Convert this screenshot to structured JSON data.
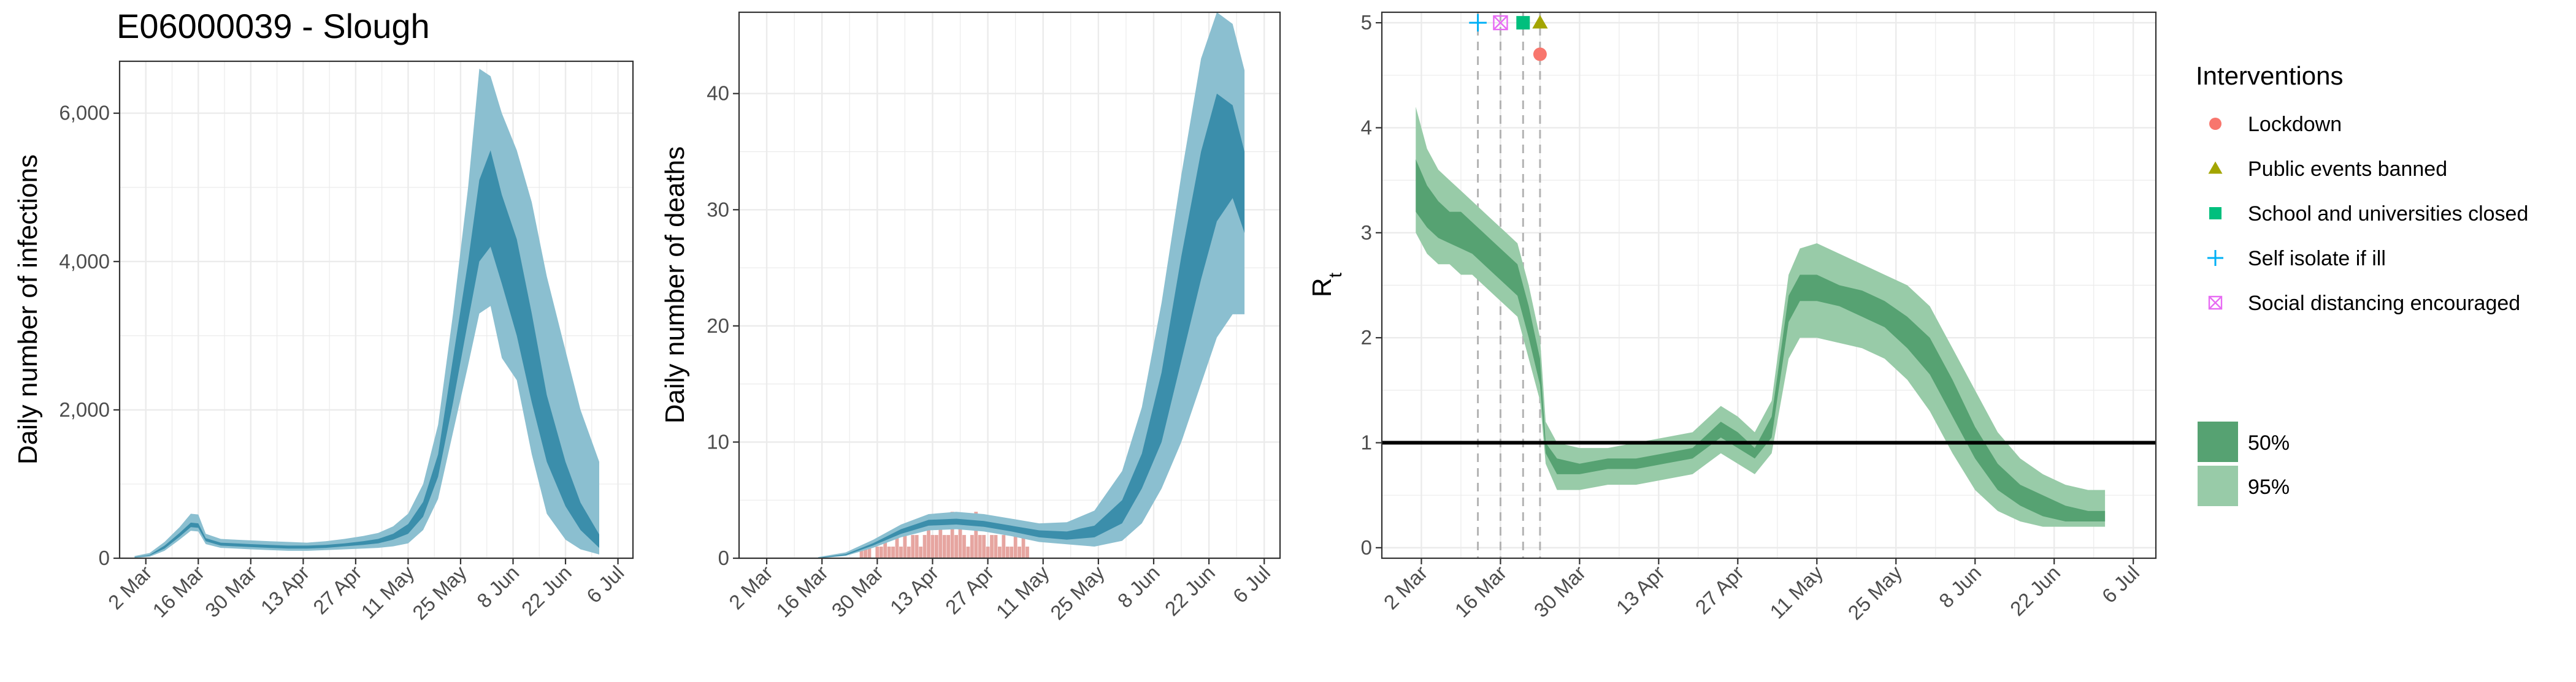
{
  "title": "E06000039 - Slough",
  "x_tick_labels": [
    "2 Mar",
    "16 Mar",
    "30 Mar",
    "13 Apr",
    "27 Apr",
    "11 May",
    "25 May",
    "8 Jun",
    "22 Jun",
    "6 Jul"
  ],
  "x_tick_dates": [
    "2020-03-02",
    "2020-03-16",
    "2020-03-30",
    "2020-04-13",
    "2020-04-27",
    "2020-05-11",
    "2020-05-25",
    "2020-06-08",
    "2020-06-22",
    "2020-07-06"
  ],
  "colors": {
    "infections_95": "#8bbfd0",
    "infections_50": "#3b8eab",
    "deaths_observed": "#e6a5a0",
    "rt_95": "#98cba8",
    "rt_50": "#56a272",
    "reference_line": "#000000",
    "intervention_line": "#b3b3b3",
    "grid": "#ebebeb",
    "panel_border": "#333333"
  },
  "chart_data": [
    {
      "id": "infections",
      "type": "area",
      "title": "E06000039 - Slough",
      "xlabel": "",
      "ylabel": "Daily number of infections",
      "xlim": [
        "2020-02-24",
        "2020-07-10"
      ],
      "ylim": [
        0,
        6700
      ],
      "y_ticks": [
        0,
        2000,
        4000,
        6000
      ],
      "y_tick_labels": [
        "0",
        "2,000",
        "4,000",
        "6,000"
      ],
      "grid": true,
      "series": [
        {
          "name": "95%",
          "x": [
            "2020-02-28",
            "2020-03-03",
            "2020-03-07",
            "2020-03-11",
            "2020-03-14",
            "2020-03-16",
            "2020-03-18",
            "2020-03-22",
            "2020-03-26",
            "2020-03-30",
            "2020-04-04",
            "2020-04-09",
            "2020-04-14",
            "2020-04-19",
            "2020-04-24",
            "2020-04-29",
            "2020-05-03",
            "2020-05-07",
            "2020-05-11",
            "2020-05-15",
            "2020-05-19",
            "2020-05-23",
            "2020-05-27",
            "2020-05-30",
            "2020-06-02",
            "2020-06-05",
            "2020-06-09",
            "2020-06-13",
            "2020-06-17",
            "2020-06-22",
            "2020-06-26",
            "2020-07-01"
          ],
          "upper": [
            30,
            70,
            220,
            420,
            600,
            590,
            330,
            260,
            250,
            240,
            230,
            220,
            210,
            230,
            260,
            300,
            340,
            430,
            600,
            1000,
            1800,
            3300,
            5000,
            6600,
            6500,
            6000,
            5500,
            4800,
            3800,
            2800,
            2000,
            1300
          ],
          "lower": [
            5,
            20,
            100,
            250,
            370,
            360,
            190,
            140,
            130,
            120,
            110,
            100,
            100,
            110,
            120,
            130,
            140,
            160,
            200,
            380,
            800,
            1700,
            2600,
            3300,
            3400,
            2700,
            2400,
            1400,
            600,
            250,
            120,
            50
          ]
        },
        {
          "name": "50%",
          "x": [
            "2020-02-28",
            "2020-03-03",
            "2020-03-07",
            "2020-03-11",
            "2020-03-14",
            "2020-03-16",
            "2020-03-18",
            "2020-03-22",
            "2020-03-26",
            "2020-03-30",
            "2020-04-04",
            "2020-04-09",
            "2020-04-14",
            "2020-04-19",
            "2020-04-24",
            "2020-04-29",
            "2020-05-03",
            "2020-05-07",
            "2020-05-11",
            "2020-05-15",
            "2020-05-19",
            "2020-05-23",
            "2020-05-27",
            "2020-05-30",
            "2020-06-02",
            "2020-06-05",
            "2020-06-09",
            "2020-06-13",
            "2020-06-17",
            "2020-06-22",
            "2020-06-26",
            "2020-07-01"
          ],
          "upper": [
            15,
            45,
            170,
            340,
            480,
            470,
            270,
            210,
            200,
            190,
            180,
            170,
            170,
            180,
            200,
            230,
            260,
            330,
            460,
            760,
            1400,
            2700,
            4000,
            5100,
            5500,
            4900,
            4300,
            3300,
            2200,
            1300,
            750,
            320
          ],
          "lower": [
            10,
            35,
            130,
            290,
            420,
            410,
            230,
            170,
            160,
            150,
            140,
            130,
            130,
            140,
            160,
            180,
            200,
            250,
            330,
            560,
            1100,
            2100,
            3200,
            4000,
            4200,
            3700,
            3000,
            2100,
            1300,
            700,
            380,
            140
          ]
        }
      ]
    },
    {
      "id": "deaths",
      "type": "area",
      "xlabel": "",
      "ylabel": "Daily number of deaths",
      "xlim": [
        "2020-02-24",
        "2020-07-10"
      ],
      "ylim": [
        0,
        47
      ],
      "y_ticks": [
        0,
        10,
        20,
        30,
        40
      ],
      "y_tick_labels": [
        "0",
        "10",
        "20",
        "30",
        "40"
      ],
      "grid": true,
      "series": [
        {
          "name": "95%",
          "x": [
            "2020-03-15",
            "2020-03-22",
            "2020-03-29",
            "2020-04-05",
            "2020-04-12",
            "2020-04-19",
            "2020-04-26",
            "2020-05-03",
            "2020-05-10",
            "2020-05-17",
            "2020-05-24",
            "2020-05-31",
            "2020-06-05",
            "2020-06-10",
            "2020-06-15",
            "2020-06-20",
            "2020-06-24",
            "2020-06-28",
            "2020-07-01"
          ],
          "upper": [
            0.1,
            0.5,
            1.6,
            2.9,
            3.8,
            4.0,
            3.8,
            3.4,
            3.0,
            3.1,
            4.1,
            7.5,
            13,
            22,
            33,
            43,
            47,
            46,
            42
          ],
          "lower": [
            0,
            0.2,
            0.9,
            1.8,
            2.4,
            2.5,
            2.3,
            1.9,
            1.4,
            1.2,
            1.0,
            1.5,
            3,
            6,
            10,
            15,
            19,
            21,
            21
          ]
        },
        {
          "name": "50%",
          "x": [
            "2020-03-15",
            "2020-03-22",
            "2020-03-29",
            "2020-04-05",
            "2020-04-12",
            "2020-04-19",
            "2020-04-26",
            "2020-05-03",
            "2020-05-10",
            "2020-05-17",
            "2020-05-24",
            "2020-05-31",
            "2020-06-05",
            "2020-06-10",
            "2020-06-15",
            "2020-06-20",
            "2020-06-24",
            "2020-06-28",
            "2020-07-01"
          ],
          "upper": [
            0.05,
            0.35,
            1.3,
            2.5,
            3.3,
            3.4,
            3.2,
            2.8,
            2.4,
            2.3,
            2.8,
            5.0,
            9,
            16,
            26,
            35,
            40,
            39,
            35
          ],
          "lower": [
            0,
            0.25,
            1.1,
            2.1,
            2.8,
            2.9,
            2.7,
            2.3,
            1.8,
            1.6,
            1.8,
            3.0,
            6,
            10,
            17,
            24,
            29,
            31,
            28
          ]
        },
        {
          "name": "observed",
          "x": [
            "2020-03-26",
            "2020-03-27",
            "2020-03-28",
            "2020-03-29",
            "2020-03-30",
            "2020-03-31",
            "2020-04-01",
            "2020-04-02",
            "2020-04-03",
            "2020-04-04",
            "2020-04-05",
            "2020-04-06",
            "2020-04-07",
            "2020-04-08",
            "2020-04-09",
            "2020-04-10",
            "2020-04-11",
            "2020-04-12",
            "2020-04-13",
            "2020-04-14",
            "2020-04-15",
            "2020-04-16",
            "2020-04-17",
            "2020-04-18",
            "2020-04-19",
            "2020-04-20",
            "2020-04-21",
            "2020-04-22",
            "2020-04-23",
            "2020-04-24",
            "2020-04-25",
            "2020-04-26",
            "2020-04-27",
            "2020-04-28",
            "2020-04-29",
            "2020-04-30",
            "2020-05-01",
            "2020-05-02",
            "2020-05-03",
            "2020-05-04",
            "2020-05-05",
            "2020-05-06",
            "2020-05-07"
          ],
          "values": [
            1,
            1,
            1,
            0,
            1,
            1,
            2,
            1,
            1,
            2,
            1,
            2,
            1,
            2,
            2,
            1,
            2,
            3,
            2,
            2,
            3,
            2,
            2,
            4,
            2,
            3,
            2,
            1,
            2,
            4,
            2,
            2,
            1,
            2,
            2,
            1,
            2,
            1,
            1,
            2,
            1,
            2,
            1
          ]
        }
      ]
    },
    {
      "id": "rt",
      "type": "area",
      "xlabel": "",
      "ylabel": "R",
      "ylabel_subscript": "t",
      "xlim": [
        "2020-02-24",
        "2020-07-10"
      ],
      "ylim": [
        -0.1,
        5.1
      ],
      "y_ticks": [
        0,
        1,
        2,
        3,
        4,
        5
      ],
      "y_tick_labels": [
        "0",
        "1",
        "2",
        "3",
        "4",
        "5"
      ],
      "grid": true,
      "reference_y": 1,
      "intervention_dates": [
        "2020-03-12",
        "2020-03-16",
        "2020-03-20",
        "2020-03-23"
      ],
      "interventions": [
        {
          "name": "Lockdown",
          "date": "2020-03-23",
          "y": 4.7,
          "shape": "circle",
          "color": "#f8766d"
        },
        {
          "name": "Public events banned",
          "date": "2020-03-23",
          "y": 5.0,
          "shape": "triangle",
          "color": "#a3a500"
        },
        {
          "name": "School and universities closed",
          "date": "2020-03-20",
          "y": 5.0,
          "shape": "square",
          "color": "#00bf7d"
        },
        {
          "name": "Self isolate if ill",
          "date": "2020-03-12",
          "y": 5.0,
          "shape": "plus",
          "color": "#00b0f6"
        },
        {
          "name": "Social distancing encouraged",
          "date": "2020-03-16",
          "y": 5.0,
          "shape": "boxcross",
          "color": "#e76bf3"
        }
      ],
      "series": [
        {
          "name": "95%",
          "x": [
            "2020-03-01",
            "2020-03-03",
            "2020-03-05",
            "2020-03-07",
            "2020-03-09",
            "2020-03-11",
            "2020-03-13",
            "2020-03-15",
            "2020-03-17",
            "2020-03-19",
            "2020-03-21",
            "2020-03-23",
            "2020-03-24",
            "2020-03-26",
            "2020-03-30",
            "2020-04-04",
            "2020-04-09",
            "2020-04-14",
            "2020-04-19",
            "2020-04-24",
            "2020-04-27",
            "2020-04-30",
            "2020-05-03",
            "2020-05-06",
            "2020-05-08",
            "2020-05-11",
            "2020-05-15",
            "2020-05-19",
            "2020-05-23",
            "2020-05-27",
            "2020-05-31",
            "2020-06-04",
            "2020-06-08",
            "2020-06-12",
            "2020-06-16",
            "2020-06-20",
            "2020-06-24",
            "2020-06-28",
            "2020-07-01"
          ],
          "upper": [
            4.2,
            3.8,
            3.6,
            3.5,
            3.4,
            3.3,
            3.2,
            3.1,
            3.0,
            2.9,
            2.5,
            2.0,
            1.2,
            1.0,
            0.95,
            0.95,
            1.0,
            1.05,
            1.1,
            1.35,
            1.25,
            1.1,
            1.4,
            2.6,
            2.85,
            2.9,
            2.8,
            2.7,
            2.6,
            2.5,
            2.3,
            1.9,
            1.5,
            1.1,
            0.85,
            0.7,
            0.6,
            0.55,
            0.55
          ],
          "lower": [
            3.0,
            2.8,
            2.7,
            2.7,
            2.6,
            2.6,
            2.5,
            2.4,
            2.3,
            2.2,
            1.8,
            1.4,
            0.8,
            0.55,
            0.55,
            0.6,
            0.6,
            0.65,
            0.7,
            0.9,
            0.8,
            0.7,
            0.9,
            1.8,
            2.0,
            2.0,
            1.95,
            1.9,
            1.8,
            1.6,
            1.3,
            0.9,
            0.55,
            0.35,
            0.25,
            0.2,
            0.2,
            0.2,
            0.2
          ]
        },
        {
          "name": "50%",
          "x": [
            "2020-03-01",
            "2020-03-03",
            "2020-03-05",
            "2020-03-07",
            "2020-03-09",
            "2020-03-11",
            "2020-03-13",
            "2020-03-15",
            "2020-03-17",
            "2020-03-19",
            "2020-03-21",
            "2020-03-23",
            "2020-03-24",
            "2020-03-26",
            "2020-03-30",
            "2020-04-04",
            "2020-04-09",
            "2020-04-14",
            "2020-04-19",
            "2020-04-24",
            "2020-04-27",
            "2020-04-30",
            "2020-05-03",
            "2020-05-06",
            "2020-05-08",
            "2020-05-11",
            "2020-05-15",
            "2020-05-19",
            "2020-05-23",
            "2020-05-27",
            "2020-05-31",
            "2020-06-04",
            "2020-06-08",
            "2020-06-12",
            "2020-06-16",
            "2020-06-20",
            "2020-06-24",
            "2020-06-28",
            "2020-07-01"
          ],
          "upper": [
            3.7,
            3.45,
            3.3,
            3.2,
            3.2,
            3.1,
            3.0,
            2.9,
            2.8,
            2.7,
            2.3,
            1.8,
            1.0,
            0.85,
            0.8,
            0.85,
            0.85,
            0.9,
            0.95,
            1.2,
            1.1,
            0.95,
            1.25,
            2.4,
            2.6,
            2.6,
            2.5,
            2.45,
            2.35,
            2.2,
            2.0,
            1.6,
            1.15,
            0.8,
            0.6,
            0.5,
            0.4,
            0.35,
            0.35
          ],
          "lower": [
            3.2,
            3.05,
            2.95,
            2.9,
            2.85,
            2.8,
            2.7,
            2.6,
            2.5,
            2.4,
            2.0,
            1.55,
            0.9,
            0.7,
            0.7,
            0.75,
            0.75,
            0.8,
            0.85,
            1.05,
            0.95,
            0.85,
            1.05,
            2.15,
            2.35,
            2.35,
            2.3,
            2.2,
            2.1,
            1.9,
            1.65,
            1.25,
            0.85,
            0.55,
            0.4,
            0.3,
            0.25,
            0.25,
            0.25
          ]
        }
      ]
    }
  ],
  "legend": {
    "title": "Interventions",
    "placement": "right",
    "bands": [
      "50%",
      "95%"
    ]
  }
}
